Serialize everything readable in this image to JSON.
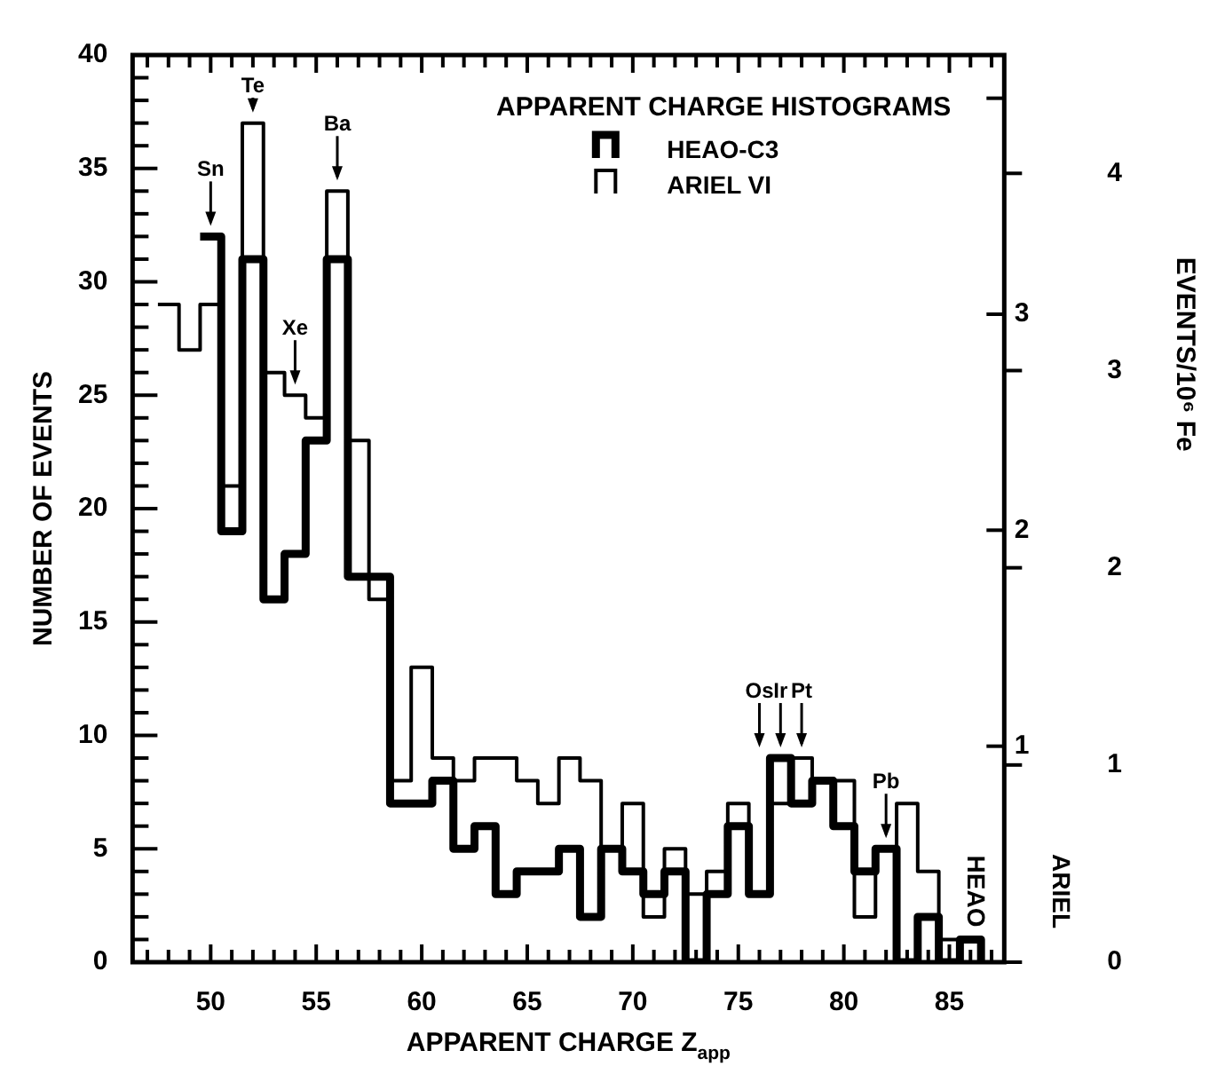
{
  "chart_data": {
    "type": "histogram",
    "xlabel": "APPARENT CHARGE Z$_{app}$",
    "ylabel": "NUMBER OF EVENTS",
    "y2label": "HEAO",
    "y3label": "ARIEL",
    "legend_title": "APPARENT CHARGE HISTOGRAMS",
    "legend": "top right",
    "bins": [
      47.5,
      48.5,
      49.5,
      50.5,
      51.5,
      52.5,
      53.5,
      54.5,
      55.5,
      56.5,
      57.5,
      58.5,
      59.5,
      60.5,
      61.5,
      62.5,
      63.5,
      64.5,
      65.5,
      66.5,
      67.5,
      68.5,
      69.5,
      70.5,
      71.5,
      72.5,
      73.5,
      74.5,
      75.5,
      76.5,
      77.5,
      78.5,
      79.5,
      80.5,
      81.5,
      82.5,
      83.5,
      84.5,
      85.5,
      86.5
    ],
    "series": [
      {
        "name": "HEAO-C3",
        "color": "#000000",
        "bins": [
          49.5,
          50.5,
          51.5,
          52.5,
          53.5,
          54.5,
          55.5,
          56.5,
          57.5,
          58.5,
          59.5,
          60.5,
          61.5,
          62.5,
          63.5,
          64.5,
          65.5,
          66.5,
          67.5,
          68.5,
          69.5,
          70.5,
          71.5,
          72.5,
          73.5,
          74.5,
          75.5,
          76.5,
          77.5,
          78.5,
          79.5,
          80.5,
          81.5,
          82.5,
          83.5,
          84.5,
          85.5,
          86.5
        ],
        "values": [
          32,
          19,
          31,
          16,
          18,
          23,
          31,
          17,
          17,
          7,
          7,
          8,
          5,
          6,
          3,
          4,
          4,
          5,
          2,
          5,
          4,
          3,
          4,
          0,
          3,
          6,
          3,
          9,
          7,
          8,
          6,
          4,
          5,
          0,
          2,
          0,
          1
        ]
      },
      {
        "name": "ARIEL VI",
        "color": "#000000",
        "values": [
          29,
          27,
          29,
          21,
          37,
          26,
          25,
          24,
          34,
          23,
          16,
          8,
          13,
          9,
          8,
          9,
          9,
          8,
          7,
          9,
          8,
          5,
          7,
          2,
          5,
          3,
          4,
          7,
          3,
          7,
          9,
          8,
          8,
          2,
          5,
          7,
          4,
          1,
          1
        ]
      }
    ],
    "xlim": [
      46.3,
      87.6
    ],
    "xticks": [
      {
        "value": 47,
        "label": null
      },
      {
        "value": 48,
        "label": null
      },
      {
        "value": 49,
        "label": null
      },
      50,
      {
        "value": 51,
        "label": null
      },
      {
        "value": 52,
        "label": null
      },
      {
        "value": 53,
        "label": null
      },
      {
        "value": 54,
        "label": null
      },
      55,
      {
        "value": 56,
        "label": null
      },
      {
        "value": 57,
        "label": null
      },
      {
        "value": 58,
        "label": null
      },
      {
        "value": 59,
        "label": null
      },
      60,
      {
        "value": 61,
        "label": null
      },
      {
        "value": 62,
        "label": null
      },
      {
        "value": 63,
        "label": null
      },
      {
        "value": 64,
        "label": null
      },
      65,
      {
        "value": 66,
        "label": null
      },
      {
        "value": 67,
        "label": null
      },
      {
        "value": 68,
        "label": null
      },
      {
        "value": 69,
        "label": null
      },
      70,
      {
        "value": 71,
        "label": null
      },
      {
        "value": 72,
        "label": null
      },
      {
        "value": 73,
        "label": null
      },
      {
        "value": 74,
        "label": null
      },
      75,
      {
        "value": 76,
        "label": null
      },
      {
        "value": 77,
        "label": null
      },
      {
        "value": 78,
        "label": null
      },
      {
        "value": 79,
        "label": null
      },
      80,
      {
        "value": 81,
        "label": null
      },
      {
        "value": 82,
        "label": null
      },
      {
        "value": 83,
        "label": null
      },
      {
        "value": 84,
        "label": null
      },
      85,
      {
        "value": 86,
        "label": null
      },
      {
        "value": 87,
        "label": null
      }
    ],
    "ylim": [
      0,
      40
    ],
    "yticks": [
      0,
      {
        "value": 1,
        "label": null
      },
      {
        "value": 2,
        "label": null
      },
      {
        "value": 3,
        "label": null
      },
      {
        "value": 4,
        "label": null
      },
      5,
      {
        "value": 6,
        "label": null
      },
      {
        "value": 7,
        "label": null
      },
      {
        "value": 8,
        "label": null
      },
      {
        "value": 9,
        "label": null
      },
      10,
      {
        "value": 11,
        "label": null
      },
      {
        "value": 12,
        "label": null
      },
      {
        "value": 13,
        "label": null
      },
      {
        "value": 14,
        "label": null
      },
      15,
      {
        "value": 16,
        "label": null
      },
      {
        "value": 17,
        "label": null
      },
      {
        "value": 18,
        "label": null
      },
      {
        "value": 19,
        "label": null
      },
      20,
      {
        "value": 21,
        "label": null
      },
      {
        "value": 22,
        "label": null
      },
      {
        "value": 23,
        "label": null
      },
      {
        "value": 24,
        "label": null
      },
      25,
      {
        "value": 26,
        "label": null
      },
      {
        "value": 27,
        "label": null
      },
      {
        "value": 28,
        "label": null
      },
      {
        "value": 29,
        "label": null
      },
      30,
      {
        "value": 31,
        "label": null
      },
      {
        "value": 32,
        "label": null
      },
      {
        "value": 33,
        "label": null
      },
      {
        "value": 34,
        "label": null
      },
      35,
      {
        "value": 36,
        "label": null
      },
      {
        "value": 37,
        "label": null
      },
      {
        "value": 38,
        "label": null
      },
      {
        "value": 39,
        "label": null
      },
      40
    ],
    "y2lim": [
      0,
      4.2
    ],
    "y2ticks": [
      1,
      2,
      3,
      {
        "value": 4,
        "label": null
      }
    ],
    "y3lim": [
      0,
      4.6
    ],
    "y3ticks": [
      0,
      1,
      2,
      3,
      4
    ],
    "annotations": [
      {
        "text": "Sn",
        "x": 50,
        "y": 32
      },
      {
        "text": "Te",
        "x": 52,
        "y": 37
      },
      {
        "text": "Xe",
        "x": 54,
        "y": 25
      },
      {
        "text": "Ba",
        "x": 56,
        "y": 34
      },
      {
        "text": "Os",
        "x": 76,
        "y": 9
      },
      {
        "text": "Ir",
        "x": 77,
        "y": 9
      },
      {
        "text": "Pt",
        "x": 78,
        "y": 9
      },
      {
        "text": "Pb",
        "x": 82,
        "y": 5
      },
      "EVENTS/10⁶ Fe"
    ]
  }
}
